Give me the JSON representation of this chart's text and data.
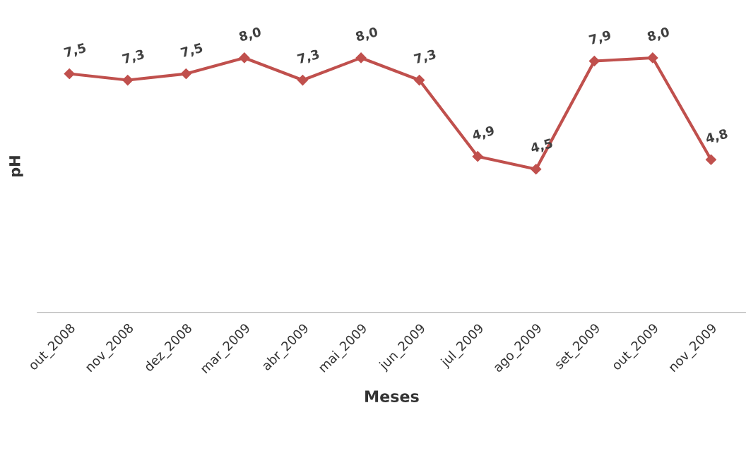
{
  "chart_data": {
    "type": "line",
    "xlabel": "Meses",
    "ylabel": "pH",
    "categories": [
      "out_2008",
      "nov_2008",
      "dez_2008",
      "mar_2009",
      "abr_2009",
      "mai_2009",
      "jun_2009",
      "jul_2009",
      "ago_2009",
      "set_2009",
      "out_2009",
      "nov_2009"
    ],
    "series": [
      {
        "color": "#c0504d",
        "values": [
          7.5,
          7.3,
          7.5,
          8.0,
          7.3,
          8.0,
          7.3,
          4.9,
          4.5,
          7.9,
          8.0,
          4.8
        ],
        "value_labels": [
          "7,5",
          "7,3",
          "7,5",
          "8,0",
          "7,3",
          "8,0",
          "7,3",
          "4,9",
          "4,5",
          "7,9",
          "8,0",
          "4,8"
        ]
      }
    ],
    "marker": "diamond",
    "line_style": "solid",
    "grid": false,
    "legend": false,
    "tick_labels": "x"
  }
}
